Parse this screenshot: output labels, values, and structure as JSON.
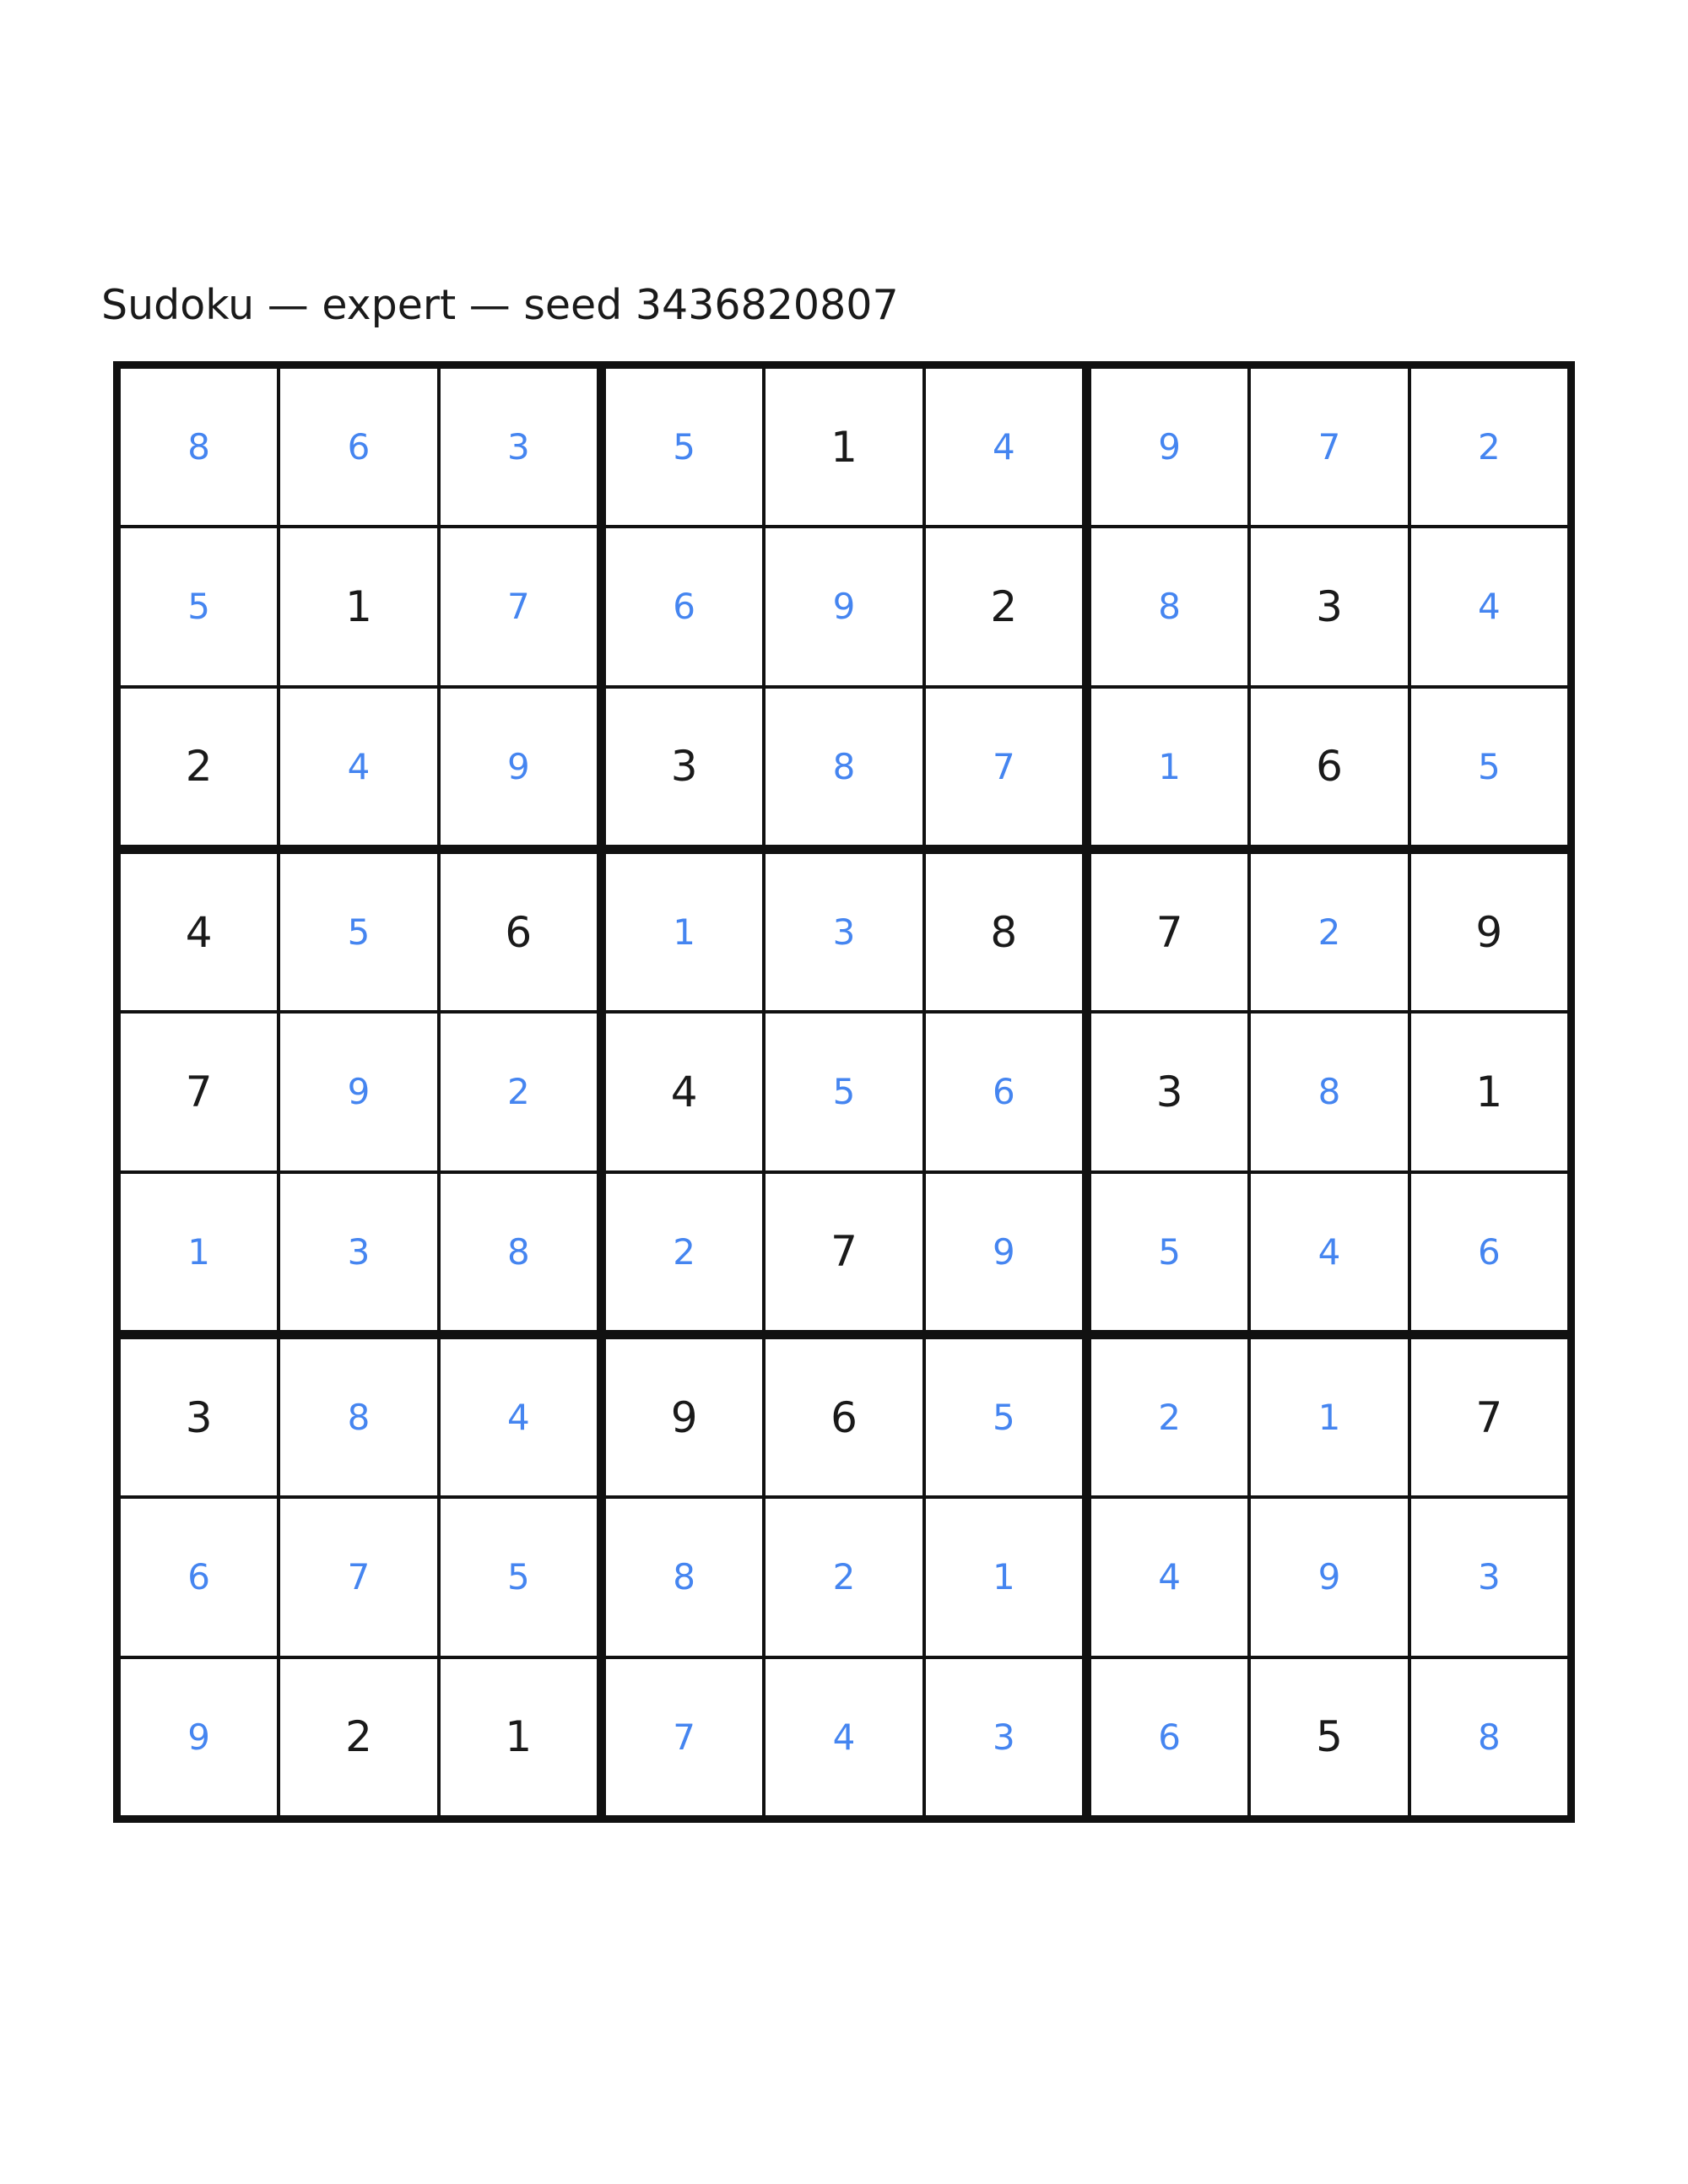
{
  "title": {
    "text": "Sudoku — expert — seed 3436820807"
  },
  "board": {
    "size": 9,
    "line_color": "#111111",
    "given_color": "#1a1a1a",
    "solved_color": "#4585f0",
    "background_color": "#ffffff",
    "rows": [
      {
        "cells": [
          {
            "value": "8",
            "given": false
          },
          {
            "value": "6",
            "given": false
          },
          {
            "value": "3",
            "given": false
          },
          {
            "value": "5",
            "given": false
          },
          {
            "value": "1",
            "given": true
          },
          {
            "value": "4",
            "given": false
          },
          {
            "value": "9",
            "given": false
          },
          {
            "value": "7",
            "given": false
          },
          {
            "value": "2",
            "given": false
          }
        ]
      },
      {
        "cells": [
          {
            "value": "5",
            "given": false
          },
          {
            "value": "1",
            "given": true
          },
          {
            "value": "7",
            "given": false
          },
          {
            "value": "6",
            "given": false
          },
          {
            "value": "9",
            "given": false
          },
          {
            "value": "2",
            "given": true
          },
          {
            "value": "8",
            "given": false
          },
          {
            "value": "3",
            "given": true
          },
          {
            "value": "4",
            "given": false
          }
        ]
      },
      {
        "cells": [
          {
            "value": "2",
            "given": true
          },
          {
            "value": "4",
            "given": false
          },
          {
            "value": "9",
            "given": false
          },
          {
            "value": "3",
            "given": true
          },
          {
            "value": "8",
            "given": false
          },
          {
            "value": "7",
            "given": false
          },
          {
            "value": "1",
            "given": false
          },
          {
            "value": "6",
            "given": true
          },
          {
            "value": "5",
            "given": false
          }
        ]
      },
      {
        "cells": [
          {
            "value": "4",
            "given": true
          },
          {
            "value": "5",
            "given": false
          },
          {
            "value": "6",
            "given": true
          },
          {
            "value": "1",
            "given": false
          },
          {
            "value": "3",
            "given": false
          },
          {
            "value": "8",
            "given": true
          },
          {
            "value": "7",
            "given": true
          },
          {
            "value": "2",
            "given": false
          },
          {
            "value": "9",
            "given": true
          }
        ]
      },
      {
        "cells": [
          {
            "value": "7",
            "given": true
          },
          {
            "value": "9",
            "given": false
          },
          {
            "value": "2",
            "given": false
          },
          {
            "value": "4",
            "given": true
          },
          {
            "value": "5",
            "given": false
          },
          {
            "value": "6",
            "given": false
          },
          {
            "value": "3",
            "given": true
          },
          {
            "value": "8",
            "given": false
          },
          {
            "value": "1",
            "given": true
          }
        ]
      },
      {
        "cells": [
          {
            "value": "1",
            "given": false
          },
          {
            "value": "3",
            "given": false
          },
          {
            "value": "8",
            "given": false
          },
          {
            "value": "2",
            "given": false
          },
          {
            "value": "7",
            "given": true
          },
          {
            "value": "9",
            "given": false
          },
          {
            "value": "5",
            "given": false
          },
          {
            "value": "4",
            "given": false
          },
          {
            "value": "6",
            "given": false
          }
        ]
      },
      {
        "cells": [
          {
            "value": "3",
            "given": true
          },
          {
            "value": "8",
            "given": false
          },
          {
            "value": "4",
            "given": false
          },
          {
            "value": "9",
            "given": true
          },
          {
            "value": "6",
            "given": true
          },
          {
            "value": "5",
            "given": false
          },
          {
            "value": "2",
            "given": false
          },
          {
            "value": "1",
            "given": false
          },
          {
            "value": "7",
            "given": true
          }
        ]
      },
      {
        "cells": [
          {
            "value": "6",
            "given": false
          },
          {
            "value": "7",
            "given": false
          },
          {
            "value": "5",
            "given": false
          },
          {
            "value": "8",
            "given": false
          },
          {
            "value": "2",
            "given": false
          },
          {
            "value": "1",
            "given": false
          },
          {
            "value": "4",
            "given": false
          },
          {
            "value": "9",
            "given": false
          },
          {
            "value": "3",
            "given": false
          }
        ]
      },
      {
        "cells": [
          {
            "value": "9",
            "given": false
          },
          {
            "value": "2",
            "given": true
          },
          {
            "value": "1",
            "given": true
          },
          {
            "value": "7",
            "given": false
          },
          {
            "value": "4",
            "given": false
          },
          {
            "value": "3",
            "given": false
          },
          {
            "value": "6",
            "given": false
          },
          {
            "value": "5",
            "given": true
          },
          {
            "value": "8",
            "given": false
          }
        ]
      }
    ]
  }
}
